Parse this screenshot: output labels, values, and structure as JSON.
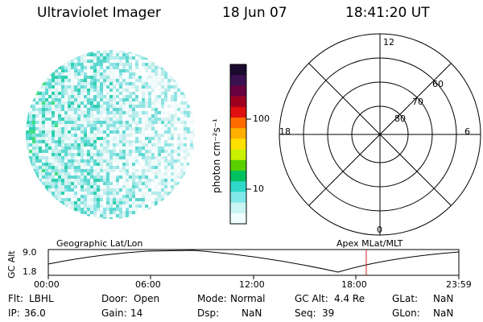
{
  "header": {
    "instrument": "Ultraviolet Imager",
    "date": "18 Jun 07",
    "time": "18:41:20 UT"
  },
  "colorbar": {
    "label": "photon cm⁻²s⁻¹",
    "ticks": [
      "100",
      "10"
    ],
    "colors": [
      "#1a0a2e",
      "#3a1050",
      "#6a0040",
      "#a00020",
      "#e01010",
      "#ff6a00",
      "#ffb000",
      "#ffe000",
      "#c8f000",
      "#5ad000",
      "#00c060",
      "#30d8c8",
      "#80e8e8",
      "#c8f4f4",
      "#f0ffff"
    ]
  },
  "polar": {
    "labels": {
      "top": "12",
      "right": "6",
      "bottom": "0",
      "left": "18"
    },
    "lat_labels": [
      "60",
      "70",
      "80"
    ]
  },
  "timeline": {
    "left_label": "Geographic Lat/Lon",
    "right_label": "Apex MLat/MLT",
    "axis_label": "GC Alt",
    "y_ticks": [
      "9.0",
      "1.8"
    ],
    "x_ticks": [
      "00:00",
      "06:00",
      "12:00",
      "18:00",
      "23:59"
    ],
    "marker_color": "#d02020"
  },
  "info": {
    "row1": [
      {
        "key": "Flt:",
        "value": "LBHL"
      },
      {
        "key": "Door:",
        "value": "Open"
      },
      {
        "key": "Mode:",
        "value": "Normal"
      },
      {
        "key": "GC Alt:",
        "value": "4.4 Re"
      },
      {
        "key": "GLat:",
        "value": "NaN"
      }
    ],
    "row2": [
      {
        "key": "IP:",
        "value": "36.0"
      },
      {
        "key": "Gain:",
        "value": "14"
      },
      {
        "key": "Dsp:",
        "value": "NaN"
      },
      {
        "key": "Seq:",
        "value": "39"
      },
      {
        "key": "GLon:",
        "value": "NaN"
      }
    ]
  }
}
